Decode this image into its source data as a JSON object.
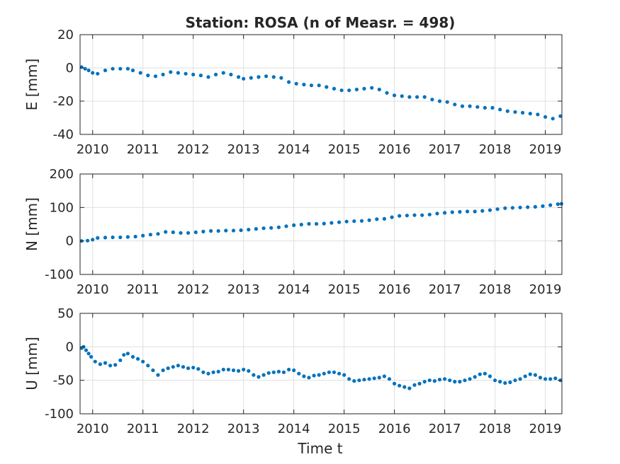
{
  "title": "Station: ROSA (n of Measr. = 498)",
  "xlabel": "Time t",
  "colors": {
    "marker": "#0072bd",
    "grid": "#dfdfdf",
    "axis": "#262626"
  },
  "chart_data": [
    {
      "type": "scatter",
      "ylabel": "E [mm]",
      "xlim": [
        2009.75,
        2019.33
      ],
      "ylim": [
        -40,
        20
      ],
      "xticks": [
        2010,
        2011,
        2012,
        2013,
        2014,
        2015,
        2016,
        2017,
        2018,
        2019
      ],
      "yticks": [
        -40,
        -20,
        0,
        20
      ],
      "grid": true,
      "points": [
        [
          2009.78,
          0.5
        ],
        [
          2009.85,
          -0.5
        ],
        [
          2009.92,
          -1.5
        ],
        [
          2010.0,
          -3
        ],
        [
          2010.1,
          -3.5
        ],
        [
          2010.25,
          -1.5
        ],
        [
          2010.4,
          -0.5
        ],
        [
          2010.55,
          -0.5
        ],
        [
          2010.7,
          -0.5
        ],
        [
          2010.8,
          -1.5
        ],
        [
          2010.95,
          -3
        ],
        [
          2011.1,
          -4.5
        ],
        [
          2011.25,
          -5
        ],
        [
          2011.4,
          -4
        ],
        [
          2011.55,
          -2.5
        ],
        [
          2011.7,
          -3
        ],
        [
          2011.85,
          -3.5
        ],
        [
          2012.0,
          -4
        ],
        [
          2012.15,
          -4.5
        ],
        [
          2012.3,
          -5.5
        ],
        [
          2012.45,
          -4
        ],
        [
          2012.6,
          -3
        ],
        [
          2012.75,
          -4
        ],
        [
          2012.9,
          -5.5
        ],
        [
          2013.0,
          -6.5
        ],
        [
          2013.15,
          -6
        ],
        [
          2013.3,
          -5.5
        ],
        [
          2013.45,
          -5
        ],
        [
          2013.6,
          -5.5
        ],
        [
          2013.75,
          -6
        ],
        [
          2013.9,
          -8.5
        ],
        [
          2014.05,
          -9.5
        ],
        [
          2014.2,
          -10
        ],
        [
          2014.35,
          -10.5
        ],
        [
          2014.5,
          -10.5
        ],
        [
          2014.65,
          -11.5
        ],
        [
          2014.8,
          -12.5
        ],
        [
          2014.95,
          -13.5
        ],
        [
          2015.1,
          -13.5
        ],
        [
          2015.25,
          -13
        ],
        [
          2015.4,
          -12.5
        ],
        [
          2015.55,
          -12
        ],
        [
          2015.7,
          -13
        ],
        [
          2015.85,
          -15
        ],
        [
          2016.0,
          -16.5
        ],
        [
          2016.15,
          -17
        ],
        [
          2016.3,
          -17.5
        ],
        [
          2016.45,
          -17.5
        ],
        [
          2016.6,
          -17.5
        ],
        [
          2016.75,
          -19
        ],
        [
          2016.9,
          -20
        ],
        [
          2017.05,
          -20.5
        ],
        [
          2017.2,
          -22
        ],
        [
          2017.35,
          -23
        ],
        [
          2017.5,
          -23
        ],
        [
          2017.65,
          -23.5
        ],
        [
          2017.8,
          -24
        ],
        [
          2017.95,
          -24
        ],
        [
          2018.1,
          -25
        ],
        [
          2018.25,
          -26
        ],
        [
          2018.4,
          -26.5
        ],
        [
          2018.55,
          -27
        ],
        [
          2018.7,
          -27.5
        ],
        [
          2018.85,
          -28
        ],
        [
          2019.0,
          -29.5
        ],
        [
          2019.15,
          -30.5
        ],
        [
          2019.3,
          -29
        ]
      ]
    },
    {
      "type": "scatter",
      "ylabel": "N [mm]",
      "xlim": [
        2009.75,
        2019.33
      ],
      "ylim": [
        -100,
        200
      ],
      "xticks": [
        2010,
        2011,
        2012,
        2013,
        2014,
        2015,
        2016,
        2017,
        2018,
        2019
      ],
      "yticks": [
        -100,
        0,
        100,
        200
      ],
      "grid": true,
      "points": [
        [
          2009.78,
          0
        ],
        [
          2009.9,
          1
        ],
        [
          2010.0,
          4
        ],
        [
          2010.1,
          9
        ],
        [
          2010.25,
          10
        ],
        [
          2010.4,
          11
        ],
        [
          2010.55,
          11
        ],
        [
          2010.7,
          12
        ],
        [
          2010.85,
          13
        ],
        [
          2011.0,
          16
        ],
        [
          2011.15,
          19
        ],
        [
          2011.3,
          21
        ],
        [
          2011.45,
          27
        ],
        [
          2011.6,
          26
        ],
        [
          2011.75,
          24
        ],
        [
          2011.9,
          24
        ],
        [
          2012.05,
          26
        ],
        [
          2012.2,
          28
        ],
        [
          2012.35,
          30
        ],
        [
          2012.5,
          30
        ],
        [
          2012.65,
          31
        ],
        [
          2012.8,
          31
        ],
        [
          2012.95,
          32
        ],
        [
          2013.1,
          34
        ],
        [
          2013.25,
          36
        ],
        [
          2013.4,
          38
        ],
        [
          2013.55,
          39
        ],
        [
          2013.7,
          41
        ],
        [
          2013.85,
          44
        ],
        [
          2014.0,
          47
        ],
        [
          2014.15,
          49
        ],
        [
          2014.3,
          51
        ],
        [
          2014.45,
          51
        ],
        [
          2014.6,
          52
        ],
        [
          2014.75,
          54
        ],
        [
          2014.9,
          56
        ],
        [
          2015.05,
          58
        ],
        [
          2015.2,
          59
        ],
        [
          2015.35,
          60
        ],
        [
          2015.5,
          62
        ],
        [
          2015.65,
          65
        ],
        [
          2015.8,
          66
        ],
        [
          2015.95,
          71
        ],
        [
          2016.1,
          75
        ],
        [
          2016.25,
          76
        ],
        [
          2016.4,
          77
        ],
        [
          2016.55,
          77
        ],
        [
          2016.7,
          79
        ],
        [
          2016.85,
          82
        ],
        [
          2017.0,
          84
        ],
        [
          2017.15,
          86
        ],
        [
          2017.3,
          87
        ],
        [
          2017.45,
          88
        ],
        [
          2017.6,
          88
        ],
        [
          2017.75,
          90
        ],
        [
          2017.9,
          92
        ],
        [
          2018.05,
          95
        ],
        [
          2018.2,
          98
        ],
        [
          2018.35,
          99
        ],
        [
          2018.5,
          100
        ],
        [
          2018.65,
          101
        ],
        [
          2018.8,
          102
        ],
        [
          2018.95,
          104
        ],
        [
          2019.1,
          107
        ],
        [
          2019.25,
          110
        ],
        [
          2019.32,
          111
        ]
      ]
    },
    {
      "type": "scatter",
      "ylabel": "U [mm]",
      "xlim": [
        2009.75,
        2019.33
      ],
      "ylim": [
        -100,
        50
      ],
      "xticks": [
        2010,
        2011,
        2012,
        2013,
        2014,
        2015,
        2016,
        2017,
        2018,
        2019
      ],
      "yticks": [
        -100,
        -50,
        0,
        50
      ],
      "grid": true,
      "points": [
        [
          2009.78,
          -2
        ],
        [
          2009.82,
          0
        ],
        [
          2009.87,
          -5
        ],
        [
          2009.92,
          -10
        ],
        [
          2009.97,
          -15
        ],
        [
          2010.05,
          -22
        ],
        [
          2010.15,
          -26
        ],
        [
          2010.25,
          -24
        ],
        [
          2010.35,
          -28
        ],
        [
          2010.45,
          -27
        ],
        [
          2010.55,
          -20
        ],
        [
          2010.62,
          -12
        ],
        [
          2010.7,
          -10
        ],
        [
          2010.8,
          -15
        ],
        [
          2010.9,
          -18
        ],
        [
          2011.0,
          -22
        ],
        [
          2011.1,
          -28
        ],
        [
          2011.2,
          -35
        ],
        [
          2011.3,
          -42
        ],
        [
          2011.4,
          -35
        ],
        [
          2011.5,
          -32
        ],
        [
          2011.6,
          -30
        ],
        [
          2011.7,
          -28
        ],
        [
          2011.8,
          -30
        ],
        [
          2011.9,
          -32
        ],
        [
          2012.0,
          -31
        ],
        [
          2012.1,
          -33
        ],
        [
          2012.2,
          -38
        ],
        [
          2012.3,
          -40
        ],
        [
          2012.4,
          -38
        ],
        [
          2012.5,
          -37
        ],
        [
          2012.6,
          -34
        ],
        [
          2012.7,
          -34
        ],
        [
          2012.8,
          -35
        ],
        [
          2012.9,
          -36
        ],
        [
          2013.0,
          -34
        ],
        [
          2013.1,
          -36
        ],
        [
          2013.2,
          -42
        ],
        [
          2013.3,
          -45
        ],
        [
          2013.4,
          -42
        ],
        [
          2013.5,
          -39
        ],
        [
          2013.6,
          -38
        ],
        [
          2013.7,
          -37
        ],
        [
          2013.8,
          -38
        ],
        [
          2013.9,
          -34
        ],
        [
          2014.0,
          -35
        ],
        [
          2014.1,
          -40
        ],
        [
          2014.2,
          -44
        ],
        [
          2014.3,
          -46
        ],
        [
          2014.4,
          -43
        ],
        [
          2014.5,
          -42
        ],
        [
          2014.6,
          -40
        ],
        [
          2014.7,
          -38
        ],
        [
          2014.8,
          -38
        ],
        [
          2014.9,
          -40
        ],
        [
          2015.0,
          -42
        ],
        [
          2015.1,
          -48
        ],
        [
          2015.2,
          -51
        ],
        [
          2015.3,
          -50
        ],
        [
          2015.4,
          -49
        ],
        [
          2015.5,
          -48
        ],
        [
          2015.6,
          -47
        ],
        [
          2015.7,
          -46
        ],
        [
          2015.8,
          -44
        ],
        [
          2015.9,
          -48
        ],
        [
          2016.0,
          -55
        ],
        [
          2016.1,
          -58
        ],
        [
          2016.2,
          -60
        ],
        [
          2016.3,
          -62
        ],
        [
          2016.4,
          -57
        ],
        [
          2016.5,
          -55
        ],
        [
          2016.6,
          -52
        ],
        [
          2016.7,
          -50
        ],
        [
          2016.8,
          -51
        ],
        [
          2016.9,
          -49
        ],
        [
          2017.0,
          -48
        ],
        [
          2017.1,
          -50
        ],
        [
          2017.2,
          -52
        ],
        [
          2017.3,
          -52
        ],
        [
          2017.4,
          -50
        ],
        [
          2017.5,
          -48
        ],
        [
          2017.6,
          -45
        ],
        [
          2017.7,
          -41
        ],
        [
          2017.8,
          -40
        ],
        [
          2017.9,
          -44
        ],
        [
          2018.0,
          -50
        ],
        [
          2018.1,
          -52
        ],
        [
          2018.2,
          -54
        ],
        [
          2018.3,
          -53
        ],
        [
          2018.4,
          -50
        ],
        [
          2018.5,
          -48
        ],
        [
          2018.6,
          -44
        ],
        [
          2018.7,
          -41
        ],
        [
          2018.8,
          -42
        ],
        [
          2018.9,
          -46
        ],
        [
          2019.0,
          -48
        ],
        [
          2019.1,
          -48
        ],
        [
          2019.2,
          -47
        ],
        [
          2019.3,
          -50
        ]
      ]
    }
  ]
}
